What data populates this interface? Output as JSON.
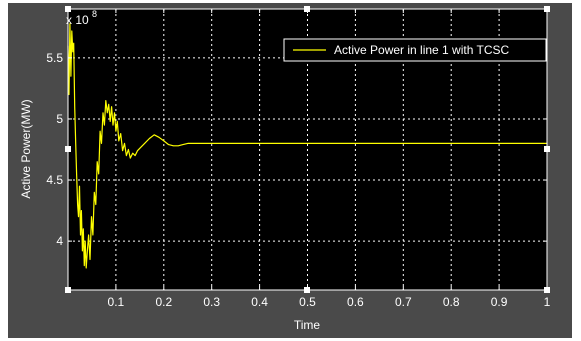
{
  "chart_data": {
    "type": "line",
    "title": "",
    "xlabel": "Time",
    "ylabel": "Active Power(MW)",
    "y_exponent_label": "x 10",
    "y_exponent_power": "8",
    "xlim": [
      0,
      1
    ],
    "ylim": [
      3.6,
      5.9
    ],
    "x_ticks": [
      0.1,
      0.2,
      0.3,
      0.4,
      0.5,
      0.6,
      0.7,
      0.8,
      0.9,
      1
    ],
    "x_tick_labels": [
      "0.1",
      "0.2",
      "0.3",
      "0.4",
      "0.5",
      "0.6",
      "0.7",
      "0.8",
      "0.9",
      "1"
    ],
    "y_ticks": [
      4,
      4.5,
      5,
      5.5
    ],
    "y_tick_labels": [
      "4",
      "4.5",
      "5",
      "5.5"
    ],
    "grid": true,
    "legend_position": "top-right",
    "colors": {
      "background": "#000000",
      "frame": "#4a4a4a",
      "axes": "#ffffff",
      "grid": "#ffffff",
      "series": "#ffff00"
    },
    "series": [
      {
        "name": "Active Power in line 1 with TCSC",
        "color": "#ffff00",
        "x": [
          0.0,
          0.002,
          0.004,
          0.006,
          0.008,
          0.01,
          0.012,
          0.014,
          0.016,
          0.018,
          0.02,
          0.022,
          0.024,
          0.026,
          0.028,
          0.03,
          0.032,
          0.034,
          0.036,
          0.038,
          0.04,
          0.043,
          0.046,
          0.049,
          0.052,
          0.055,
          0.058,
          0.061,
          0.064,
          0.067,
          0.07,
          0.073,
          0.076,
          0.079,
          0.082,
          0.085,
          0.088,
          0.091,
          0.094,
          0.097,
          0.1,
          0.103,
          0.106,
          0.11,
          0.114,
          0.118,
          0.122,
          0.126,
          0.13,
          0.135,
          0.14,
          0.145,
          0.15,
          0.16,
          0.17,
          0.18,
          0.19,
          0.2,
          0.21,
          0.22,
          0.23,
          0.24,
          0.25,
          0.26,
          0.28,
          0.3,
          0.35,
          0.4,
          0.5,
          0.6,
          0.7,
          0.8,
          0.9,
          1.0
        ],
        "y": [
          5.6,
          5.2,
          5.78,
          5.35,
          5.72,
          5.55,
          5.62,
          5.1,
          4.8,
          4.55,
          4.3,
          4.2,
          4.45,
          4.05,
          4.25,
          3.92,
          4.1,
          3.8,
          4.0,
          3.78,
          3.9,
          4.05,
          3.85,
          4.2,
          4.05,
          4.4,
          4.3,
          4.65,
          4.55,
          4.9,
          4.8,
          5.05,
          4.95,
          5.15,
          5.05,
          5.12,
          4.98,
          5.1,
          4.95,
          5.05,
          4.9,
          4.98,
          4.82,
          4.88,
          4.74,
          4.8,
          4.7,
          4.75,
          4.68,
          4.72,
          4.7,
          4.74,
          4.76,
          4.8,
          4.84,
          4.87,
          4.85,
          4.82,
          4.79,
          4.78,
          4.78,
          4.79,
          4.8,
          4.8,
          4.8,
          4.8,
          4.8,
          4.8,
          4.8,
          4.8,
          4.8,
          4.8,
          4.8,
          4.8
        ]
      }
    ]
  }
}
